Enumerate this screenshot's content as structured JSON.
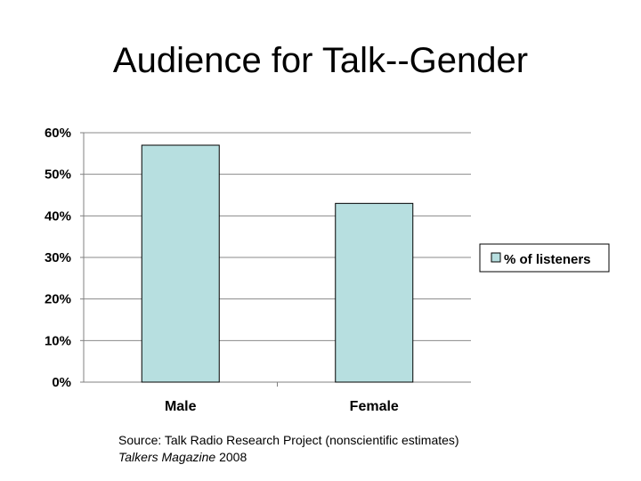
{
  "slide": {
    "title": "Audience for Talk--Gender"
  },
  "chart_data": {
    "type": "bar",
    "categories": [
      "Male",
      "Female"
    ],
    "series": [
      {
        "name": "% of listeners",
        "values": [
          57,
          43
        ]
      }
    ],
    "ylim": [
      0,
      60
    ],
    "yticks": [
      "0%",
      "10%",
      "20%",
      "30%",
      "40%",
      "50%",
      "60%"
    ],
    "ytick_values": [
      0,
      10,
      20,
      30,
      40,
      50,
      60
    ],
    "grid": true,
    "legend": "right",
    "bar_color": "#b7dfe0",
    "bar_edge_color": "#000000"
  },
  "source": {
    "line1": "Source: Talk Radio Research Project (nonscientific estimates)",
    "publication": "Talkers Magazine",
    "year": " 2008"
  }
}
